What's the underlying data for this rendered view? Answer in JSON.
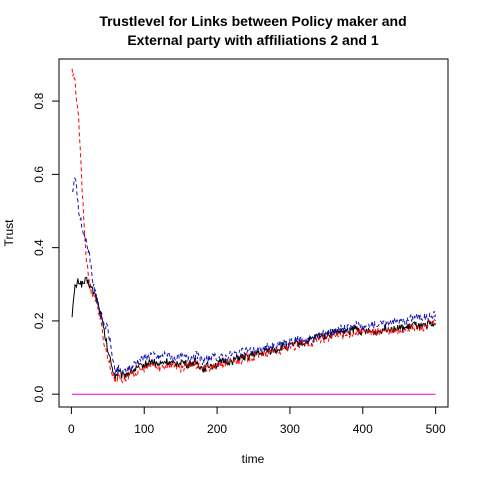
{
  "chart_data": {
    "type": "line",
    "title": [
      "Trustlevel for Links between Policy maker and",
      "External party with affiliations 2 and 1"
    ],
    "xlabel": "time",
    "ylabel": "Trust",
    "xlim": [
      -17,
      517
    ],
    "ylim": [
      -0.035,
      0.915
    ],
    "xticks": [
      0,
      100,
      200,
      300,
      400,
      500
    ],
    "yticks": [
      0.0,
      0.2,
      0.4,
      0.6,
      0.8
    ],
    "ytick_labels": [
      "0.0",
      "0.2",
      "0.4",
      "0.6",
      "0.8"
    ],
    "grid": false,
    "series": [
      {
        "color": "#000000",
        "dash": "solid",
        "points": [
          [
            1,
            0.22
          ],
          [
            5,
            0.29
          ],
          [
            10,
            0.31
          ],
          [
            15,
            0.3
          ],
          [
            20,
            0.31
          ],
          [
            25,
            0.3
          ],
          [
            30,
            0.28
          ],
          [
            35,
            0.26
          ],
          [
            40,
            0.22
          ],
          [
            45,
            0.17
          ],
          [
            50,
            0.12
          ],
          [
            55,
            0.08
          ],
          [
            60,
            0.05
          ],
          [
            65,
            0.06
          ],
          [
            70,
            0.05
          ],
          [
            80,
            0.06
          ],
          [
            90,
            0.07
          ],
          [
            100,
            0.08
          ],
          [
            110,
            0.09
          ],
          [
            120,
            0.08
          ],
          [
            130,
            0.09
          ],
          [
            140,
            0.08
          ],
          [
            150,
            0.09
          ],
          [
            160,
            0.08
          ],
          [
            170,
            0.09
          ],
          [
            180,
            0.07
          ],
          [
            190,
            0.08
          ],
          [
            200,
            0.08
          ],
          [
            210,
            0.09
          ],
          [
            220,
            0.09
          ],
          [
            230,
            0.1
          ],
          [
            240,
            0.1
          ],
          [
            250,
            0.11
          ],
          [
            260,
            0.11
          ],
          [
            270,
            0.12
          ],
          [
            280,
            0.12
          ],
          [
            290,
            0.13
          ],
          [
            300,
            0.13
          ],
          [
            310,
            0.14
          ],
          [
            320,
            0.14
          ],
          [
            330,
            0.15
          ],
          [
            340,
            0.16
          ],
          [
            350,
            0.16
          ],
          [
            360,
            0.17
          ],
          [
            370,
            0.17
          ],
          [
            380,
            0.17
          ],
          [
            390,
            0.18
          ],
          [
            400,
            0.17
          ],
          [
            410,
            0.17
          ],
          [
            420,
            0.17
          ],
          [
            430,
            0.18
          ],
          [
            440,
            0.18
          ],
          [
            450,
            0.18
          ],
          [
            460,
            0.18
          ],
          [
            470,
            0.19
          ],
          [
            480,
            0.18
          ],
          [
            490,
            0.19
          ],
          [
            500,
            0.19
          ]
        ]
      },
      {
        "color": "#ff0000",
        "dash": "dashed",
        "points": [
          [
            1,
            0.88
          ],
          [
            5,
            0.85
          ],
          [
            10,
            0.75
          ],
          [
            15,
            0.55
          ],
          [
            20,
            0.38
          ],
          [
            25,
            0.3
          ],
          [
            30,
            0.27
          ],
          [
            35,
            0.25
          ],
          [
            40,
            0.2
          ],
          [
            45,
            0.14
          ],
          [
            50,
            0.1
          ],
          [
            55,
            0.06
          ],
          [
            60,
            0.04
          ],
          [
            65,
            0.05
          ],
          [
            70,
            0.04
          ],
          [
            80,
            0.05
          ],
          [
            90,
            0.06
          ],
          [
            100,
            0.07
          ],
          [
            110,
            0.08
          ],
          [
            120,
            0.07
          ],
          [
            130,
            0.08
          ],
          [
            140,
            0.08
          ],
          [
            150,
            0.07
          ],
          [
            160,
            0.08
          ],
          [
            170,
            0.08
          ],
          [
            180,
            0.07
          ],
          [
            190,
            0.07
          ],
          [
            200,
            0.08
          ],
          [
            210,
            0.08
          ],
          [
            220,
            0.09
          ],
          [
            230,
            0.09
          ],
          [
            240,
            0.1
          ],
          [
            250,
            0.1
          ],
          [
            260,
            0.11
          ],
          [
            270,
            0.11
          ],
          [
            280,
            0.12
          ],
          [
            290,
            0.12
          ],
          [
            300,
            0.13
          ],
          [
            310,
            0.13
          ],
          [
            320,
            0.14
          ],
          [
            330,
            0.14
          ],
          [
            340,
            0.15
          ],
          [
            350,
            0.15
          ],
          [
            360,
            0.16
          ],
          [
            370,
            0.16
          ],
          [
            380,
            0.16
          ],
          [
            390,
            0.17
          ],
          [
            400,
            0.17
          ],
          [
            410,
            0.17
          ],
          [
            420,
            0.17
          ],
          [
            430,
            0.17
          ],
          [
            440,
            0.17
          ],
          [
            450,
            0.17
          ],
          [
            460,
            0.18
          ],
          [
            470,
            0.18
          ],
          [
            480,
            0.18
          ],
          [
            490,
            0.19
          ],
          [
            500,
            0.2
          ]
        ]
      },
      {
        "color": "#1414b4",
        "dash": "dashed",
        "points": [
          [
            1,
            0.55
          ],
          [
            5,
            0.6
          ],
          [
            10,
            0.5
          ],
          [
            15,
            0.45
          ],
          [
            20,
            0.42
          ],
          [
            25,
            0.38
          ],
          [
            30,
            0.3
          ],
          [
            35,
            0.26
          ],
          [
            40,
            0.22
          ],
          [
            45,
            0.19
          ],
          [
            50,
            0.18
          ],
          [
            55,
            0.12
          ],
          [
            60,
            0.06
          ],
          [
            65,
            0.07
          ],
          [
            70,
            0.06
          ],
          [
            80,
            0.07
          ],
          [
            90,
            0.09
          ],
          [
            100,
            0.1
          ],
          [
            110,
            0.11
          ],
          [
            120,
            0.1
          ],
          [
            130,
            0.11
          ],
          [
            140,
            0.1
          ],
          [
            150,
            0.1
          ],
          [
            160,
            0.1
          ],
          [
            170,
            0.11
          ],
          [
            180,
            0.09
          ],
          [
            190,
            0.1
          ],
          [
            200,
            0.1
          ],
          [
            210,
            0.1
          ],
          [
            220,
            0.11
          ],
          [
            230,
            0.11
          ],
          [
            240,
            0.12
          ],
          [
            250,
            0.12
          ],
          [
            260,
            0.12
          ],
          [
            270,
            0.13
          ],
          [
            280,
            0.13
          ],
          [
            290,
            0.14
          ],
          [
            300,
            0.14
          ],
          [
            310,
            0.15
          ],
          [
            320,
            0.15
          ],
          [
            330,
            0.15
          ],
          [
            340,
            0.16
          ],
          [
            350,
            0.17
          ],
          [
            360,
            0.17
          ],
          [
            370,
            0.18
          ],
          [
            380,
            0.18
          ],
          [
            390,
            0.19
          ],
          [
            400,
            0.18
          ],
          [
            410,
            0.19
          ],
          [
            420,
            0.19
          ],
          [
            430,
            0.19
          ],
          [
            440,
            0.2
          ],
          [
            450,
            0.2
          ],
          [
            460,
            0.2
          ],
          [
            470,
            0.21
          ],
          [
            480,
            0.21
          ],
          [
            490,
            0.21
          ],
          [
            500,
            0.22
          ]
        ]
      },
      {
        "color": "#e600e6",
        "dash": "solid",
        "points": [
          [
            1,
            0.0
          ],
          [
            500,
            0.0
          ]
        ]
      }
    ]
  }
}
